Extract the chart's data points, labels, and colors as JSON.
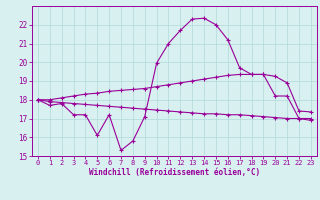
{
  "x": [
    0,
    1,
    2,
    3,
    4,
    5,
    6,
    7,
    8,
    9,
    10,
    11,
    12,
    13,
    14,
    15,
    16,
    17,
    18,
    19,
    20,
    21,
    22,
    23
  ],
  "line1": [
    18.0,
    17.7,
    17.8,
    17.2,
    17.2,
    16.1,
    17.2,
    15.3,
    15.8,
    17.1,
    19.95,
    21.0,
    21.7,
    22.3,
    22.35,
    22.0,
    21.2,
    19.7,
    19.35,
    19.35,
    18.2,
    18.2,
    17.0,
    16.9
  ],
  "line2": [
    18.0,
    18.0,
    18.1,
    18.2,
    18.3,
    18.35,
    18.45,
    18.5,
    18.55,
    18.6,
    18.7,
    18.8,
    18.9,
    19.0,
    19.1,
    19.2,
    19.3,
    19.35,
    19.35,
    19.35,
    19.25,
    18.9,
    17.4,
    17.35
  ],
  "line3": [
    18.0,
    17.9,
    17.85,
    17.8,
    17.75,
    17.7,
    17.65,
    17.6,
    17.55,
    17.5,
    17.45,
    17.4,
    17.35,
    17.3,
    17.25,
    17.25,
    17.2,
    17.2,
    17.15,
    17.1,
    17.05,
    17.0,
    17.0,
    17.0
  ],
  "line_color": "#990099",
  "bg_color": "#d8f0f0",
  "grid_color": "#b0d8d8",
  "xlabel": "Windchill (Refroidissement éolien,°C)",
  "ylim": [
    15,
    23
  ],
  "xlim": [
    -0.5,
    23.5
  ],
  "yticks": [
    15,
    16,
    17,
    18,
    19,
    20,
    21,
    22
  ],
  "xticks": [
    0,
    1,
    2,
    3,
    4,
    5,
    6,
    7,
    8,
    9,
    10,
    11,
    12,
    13,
    14,
    15,
    16,
    17,
    18,
    19,
    20,
    21,
    22,
    23
  ],
  "marker": "+",
  "markersize": 3,
  "linewidth": 0.8,
  "tick_fontsize": 5,
  "xlabel_fontsize": 5.5
}
